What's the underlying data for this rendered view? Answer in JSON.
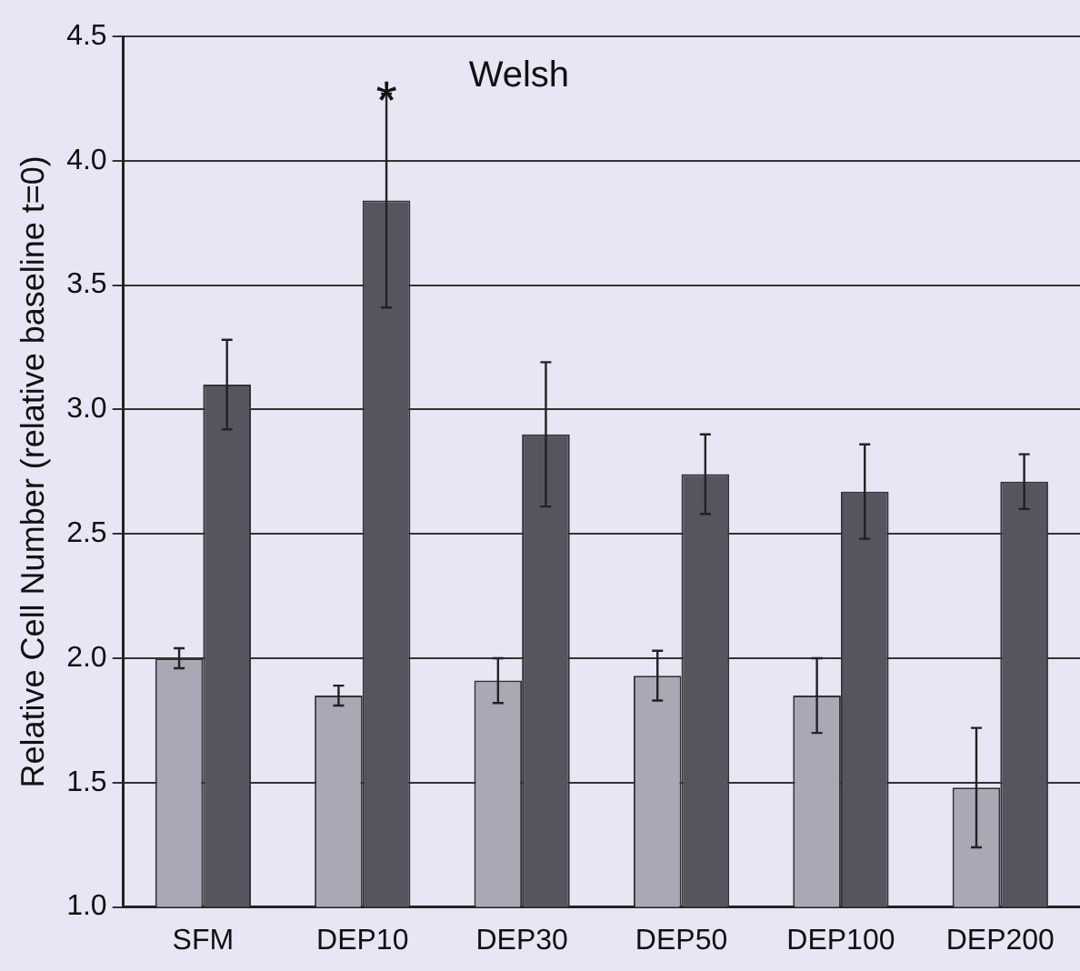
{
  "chart_data": {
    "type": "bar",
    "ylabel": "Relative Cell Number (relative baseline t=0)",
    "categories": [
      "SFM",
      "DEP10",
      "DEP30",
      "DEP50",
      "DEP100",
      "DEP200"
    ],
    "series": [
      {
        "color": "#a9a9b6",
        "values": [
          2.0,
          1.85,
          1.91,
          1.93,
          1.85,
          1.48
        ],
        "errors": [
          0.04,
          0.04,
          0.09,
          0.1,
          0.15,
          0.24
        ]
      },
      {
        "color": "#55555f",
        "values": [
          3.1,
          3.84,
          2.9,
          2.74,
          2.67,
          2.71
        ],
        "errors": [
          0.18,
          0.43,
          0.29,
          0.16,
          0.19,
          0.11
        ]
      }
    ],
    "ylim": [
      1.0,
      4.5
    ],
    "yticks": [
      {
        "value": 1.0,
        "label": "1.0"
      },
      {
        "value": 1.5,
        "label": "1.5"
      },
      {
        "value": 2.0,
        "label": "2.0"
      },
      {
        "value": 2.5,
        "label": "2.5"
      },
      {
        "value": 3.0,
        "label": "3.0"
      },
      {
        "value": 3.5,
        "label": "3.5"
      },
      {
        "value": 4.0,
        "label": "4.0"
      },
      {
        "value": 4.5,
        "label": "4.5"
      }
    ],
    "grid": "y",
    "legend": false,
    "annotations": [
      "Welsh",
      "*"
    ]
  }
}
